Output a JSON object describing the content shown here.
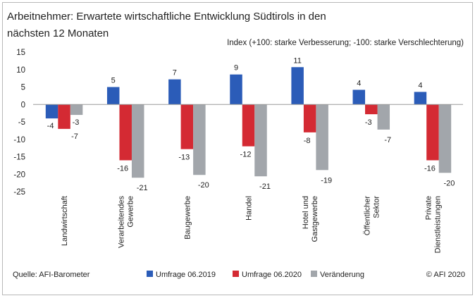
{
  "chart_data": {
    "type": "bar",
    "title_lines": [
      "Arbeitnehmer: Erwartete wirtschaftliche Entwicklung Südtirols in den",
      "nächsten 12 Monaten"
    ],
    "note": "Index (+100: starke Verbesserung; -100: starke Verschlechterung)",
    "categories": [
      [
        "Landwirtschaft"
      ],
      [
        "Verarbeitendes",
        "Gewerbe"
      ],
      [
        "Baugewerbe"
      ],
      [
        "Handel"
      ],
      [
        "Hotel und",
        "Gastgewerbe"
      ],
      [
        "Öffentlicher",
        "Sektor"
      ],
      [
        "Private",
        "Dienstleistungen"
      ]
    ],
    "series": [
      {
        "name": "Umfrage 06.2019",
        "color": "#2b5cb8",
        "values": [
          -4,
          5,
          7,
          9,
          11,
          4,
          4
        ],
        "bar_values": [
          -4,
          5,
          7.2,
          8.6,
          10.7,
          4.2,
          3.6
        ]
      },
      {
        "name": "Umfrage 06.2020",
        "color": "#d42a33",
        "values": [
          -7,
          -16,
          -13,
          -12,
          -8,
          -3,
          -16
        ],
        "bar_values": [
          -7,
          -16,
          -12.8,
          -12,
          -8,
          -2.8,
          -16
        ]
      },
      {
        "name": "Veränderung",
        "color": "#a2a6ab",
        "values": [
          -3,
          -21,
          -20,
          -21,
          -19,
          -7,
          -20
        ],
        "bar_values": [
          -3,
          -21,
          -20.2,
          -20.6,
          -18.8,
          -7.2,
          -19.6
        ]
      }
    ],
    "ylim": [
      -25,
      15
    ],
    "yticks": [
      15,
      10,
      5,
      0,
      -5,
      -10,
      -15,
      -20,
      -25
    ],
    "grid": false,
    "legend_position": "bottom"
  },
  "footer": {
    "source": "Quelle:  AFI-Barometer",
    "copyright": "© AFI 2020"
  }
}
